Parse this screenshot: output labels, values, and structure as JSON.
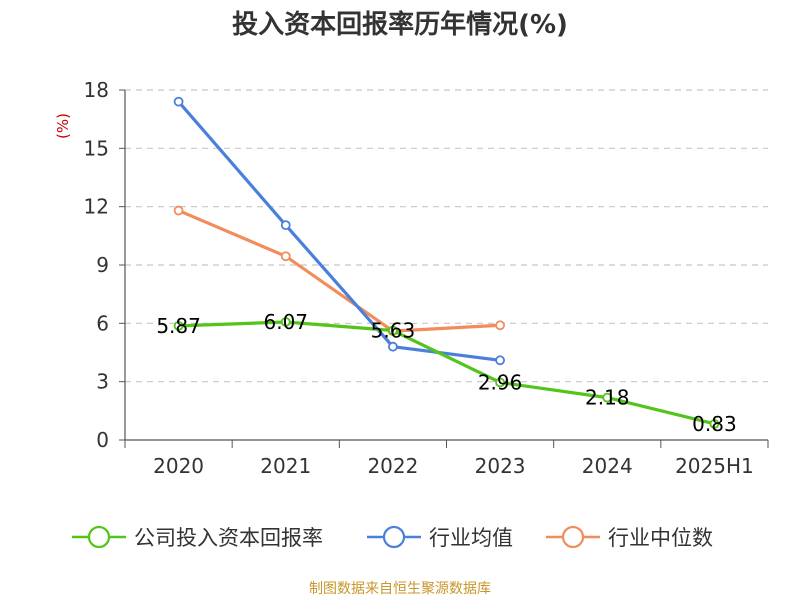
{
  "title": "投入资本回报率历年情况(%)",
  "source": "制图数据来自恒生聚源数据库",
  "chart_data": {
    "type": "line",
    "title": "投入资本回报率历年情况(%)",
    "unit_label": "(%)",
    "categories": [
      "2020",
      "2021",
      "2022",
      "2023",
      "2024",
      "2025H1"
    ],
    "ylim": [
      0,
      18
    ],
    "yticks": [
      0,
      3,
      6,
      9,
      12,
      15,
      18
    ],
    "grid": true,
    "legend_position": "bottom",
    "series": [
      {
        "name": "公司投入资本回报率",
        "color": "#52c41a",
        "values": [
          5.87,
          6.07,
          5.63,
          2.96,
          2.18,
          0.83
        ],
        "labels": [
          "5.87",
          "6.07",
          "5.63",
          "2.96",
          "2.18",
          "0.83"
        ]
      },
      {
        "name": "行业均值",
        "color": "#4a7fdc",
        "values": [
          17.4,
          11.05,
          4.8,
          4.1,
          null,
          null
        ]
      },
      {
        "name": "行业中位数",
        "color": "#f28c5a",
        "values": [
          11.8,
          9.45,
          5.6,
          5.9,
          null,
          null
        ]
      }
    ]
  }
}
